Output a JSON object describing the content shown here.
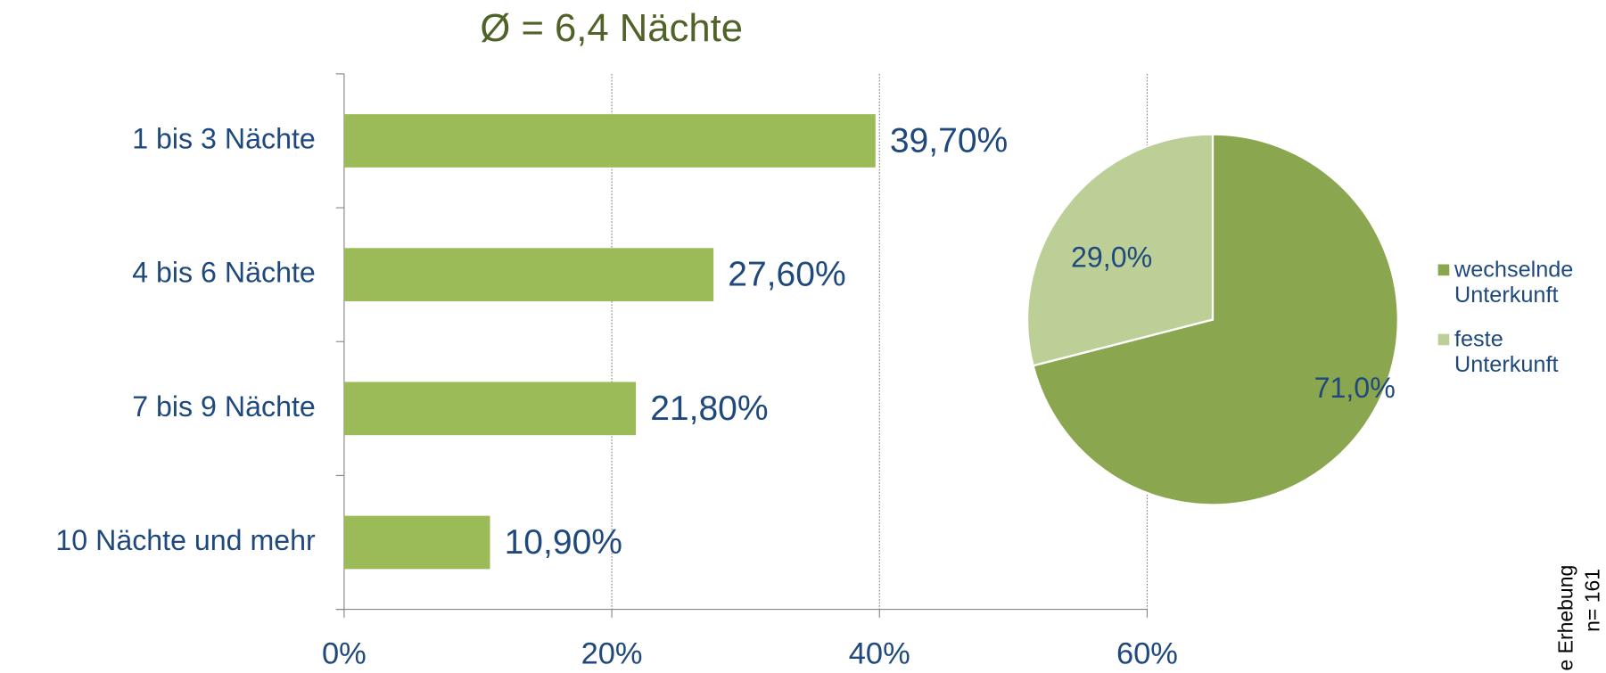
{
  "chart_data": [
    {
      "type": "barh",
      "title": "Ø = 6,4 Nächte",
      "categories": [
        "1 bis 3 Nächte",
        "4 bis 6 Nächte",
        "7 bis 9 Nächte",
        "10 Nächte und mehr"
      ],
      "values": [
        39.7,
        27.6,
        21.8,
        10.9
      ],
      "value_labels": [
        "39,70%",
        "27,60%",
        "21,80%",
        "10,90%"
      ],
      "color": "#9bbb59",
      "xlim": [
        0,
        60
      ],
      "xticks": [
        {
          "value": 0,
          "label": "0%"
        },
        {
          "value": 20,
          "label": "20%"
        },
        {
          "value": 40,
          "label": "40%"
        },
        {
          "value": 60,
          "label": "60%"
        }
      ],
      "grid": true
    },
    {
      "type": "pie",
      "categories": [
        "wechselnde Unterkunft",
        "feste Unterkunft"
      ],
      "values": [
        71,
        29
      ],
      "value_labels": [
        "71,0%",
        "29,0%"
      ],
      "colors": [
        "#8aa64e",
        "#bccf96"
      ],
      "legend": "right",
      "source": "e Erhebung",
      "note": "n= 161"
    }
  ]
}
